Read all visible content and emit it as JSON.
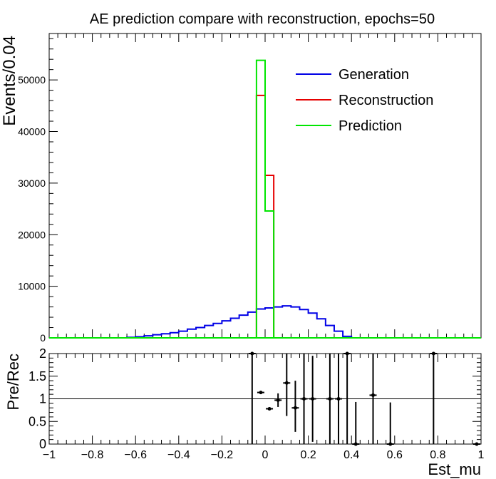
{
  "chart_data": [
    {
      "type": "line",
      "title": "AE prediction compare with reconstruction, epochs=50",
      "ylabel": "Events/0.04",
      "xlim": [
        -1,
        1
      ],
      "ylim": [
        0,
        59000
      ],
      "yticks": [
        0,
        10000,
        20000,
        30000,
        40000,
        50000
      ],
      "ytick_labels": [
        "0",
        "10000",
        "20000",
        "30000",
        "40000",
        "50000"
      ],
      "legend_position": "top-right",
      "series": [
        {
          "name": "Generation",
          "color": "#0000e6",
          "bin_edges": [
            -0.64,
            -0.6,
            -0.56,
            -0.52,
            -0.48,
            -0.44,
            -0.4,
            -0.36,
            -0.32,
            -0.28,
            -0.24,
            -0.2,
            -0.16,
            -0.12,
            -0.08,
            -0.04,
            0.0,
            0.04,
            0.08,
            0.12,
            0.16,
            0.2,
            0.24,
            0.28,
            0.32,
            0.36,
            0.4
          ],
          "values": [
            100,
            200,
            400,
            600,
            800,
            1000,
            1300,
            1700,
            2000,
            2400,
            2800,
            3300,
            3800,
            4400,
            5000,
            5600,
            5800,
            6000,
            6200,
            6000,
            5500,
            4800,
            3700,
            2400,
            1300,
            300
          ]
        },
        {
          "name": "Reconstruction",
          "color": "#e60000",
          "bin_edges": [
            -0.04,
            0.0,
            0.04
          ],
          "values": [
            47000,
            31500
          ]
        },
        {
          "name": "Prediction",
          "color": "#00e600",
          "bin_edges": [
            -0.04,
            0.0,
            0.04
          ],
          "values": [
            53800,
            24600
          ]
        }
      ]
    },
    {
      "type": "scatter",
      "xlabel": "Est_mu",
      "ylabel": "Pre/Rec",
      "xlim": [
        -1,
        1
      ],
      "ylim": [
        0,
        2
      ],
      "reference_line": 1,
      "xticks": [
        -1,
        -0.8,
        -0.6,
        -0.4,
        -0.2,
        0,
        0.2,
        0.4,
        0.6,
        0.8,
        1
      ],
      "xtick_labels": [
        "−1",
        "−0.8",
        "−0.6",
        "−0.4",
        "−0.2",
        "0",
        "0.2",
        "0.4",
        "0.6",
        "0.8",
        "1"
      ],
      "yticks": [
        0,
        0.5,
        1,
        1.5,
        2
      ],
      "ytick_labels": [
        "0",
        "0.5",
        "1",
        "1.5",
        "2"
      ],
      "points": [
        {
          "x": -0.06,
          "y": 2.0,
          "ylo": 0.0,
          "yhi": 2.0
        },
        {
          "x": -0.02,
          "y": 1.14,
          "ylo": 1.14,
          "yhi": 1.14
        },
        {
          "x": 0.02,
          "y": 0.78,
          "ylo": 0.78,
          "yhi": 0.78
        },
        {
          "x": 0.06,
          "y": 0.97,
          "ylo": 0.82,
          "yhi": 1.12
        },
        {
          "x": 0.1,
          "y": 1.35,
          "ylo": 0.62,
          "yhi": 2.0
        },
        {
          "x": 0.14,
          "y": 0.8,
          "ylo": 0.27,
          "yhi": 1.4
        },
        {
          "x": 0.18,
          "y": 1.0,
          "ylo": 0.0,
          "yhi": 2.0
        },
        {
          "x": 0.22,
          "y": 1.0,
          "ylo": 0.05,
          "yhi": 1.95
        },
        {
          "x": 0.3,
          "y": 1.0,
          "ylo": 0.0,
          "yhi": 2.0
        },
        {
          "x": 0.34,
          "y": 1.0,
          "ylo": 0.0,
          "yhi": 2.0
        },
        {
          "x": 0.38,
          "y": 2.0,
          "ylo": 0.0,
          "yhi": 2.0
        },
        {
          "x": 0.42,
          "y": 0.0,
          "ylo": 0.0,
          "yhi": 0.93
        },
        {
          "x": 0.5,
          "y": 1.08,
          "ylo": 0.0,
          "yhi": 2.0
        },
        {
          "x": 0.58,
          "y": 0.0,
          "ylo": 0.0,
          "yhi": 0.92
        },
        {
          "x": 0.78,
          "y": 2.0,
          "ylo": 0.0,
          "yhi": 2.0
        },
        {
          "x": 0.98,
          "y": 0.0,
          "ylo": 0.0,
          "yhi": 0.0
        }
      ]
    }
  ]
}
